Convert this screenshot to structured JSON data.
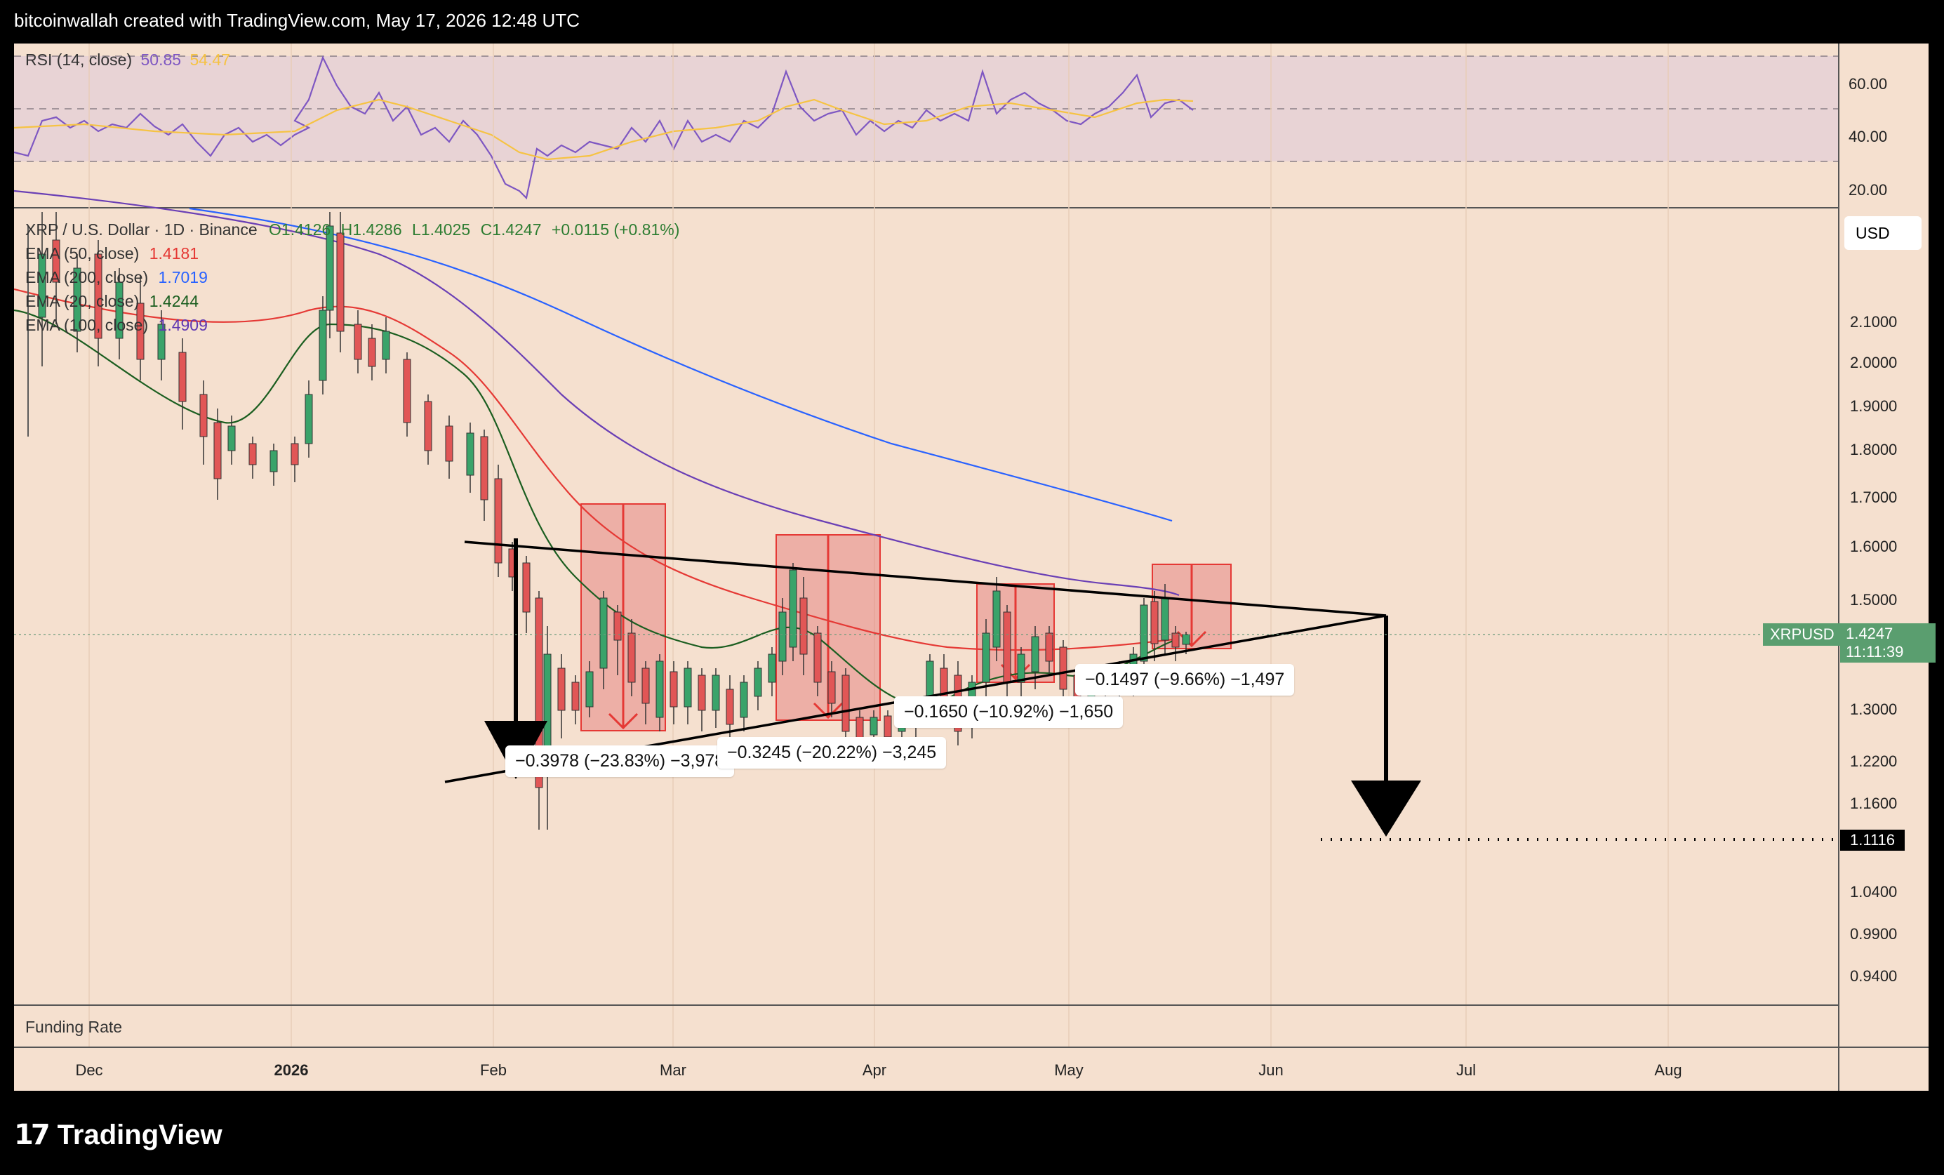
{
  "header": {
    "credit": "bitcoinwallah created with TradingView.com, May 17, 2026 12:48 UTC"
  },
  "footer": {
    "brand": "TradingView",
    "logo_mark": "17"
  },
  "rsi": {
    "label": "RSI (14, close)",
    "value": "50.85",
    "ma_value": "54.47",
    "value_color": "#7e57c2",
    "ma_color": "#f6c343",
    "ticks": [
      "60.00",
      "40.00",
      "20.00"
    ]
  },
  "price_pane": {
    "symbol_line": "XRP / U.S. Dollar · 1D · Binance",
    "ohlc": {
      "o": "O1.4126",
      "h": "H1.4286",
      "l": "L1.4025",
      "c": "C1.4247",
      "chg": "+0.0115 (+0.81%)"
    },
    "currency": "USD",
    "ema_legend": [
      {
        "label": "EMA (50, close)",
        "value": "1.4181",
        "color": "#e53935"
      },
      {
        "label": "EMA (200, close)",
        "value": "1.7019",
        "color": "#2962ff"
      },
      {
        "label": "EMA (20, close)",
        "value": "1.4244",
        "color": "#1b5e20"
      },
      {
        "label": "EMA (100, close)",
        "value": "1.4909",
        "color": "#5e35b1"
      }
    ],
    "price_ticks": [
      "2.1000",
      "2.0000",
      "1.9000",
      "1.8000",
      "1.7000",
      "1.6000",
      "1.5000",
      "1.3000",
      "1.2200",
      "1.1600",
      "1.0400",
      "0.9900",
      "0.9400"
    ],
    "last_price": {
      "symbol": "XRPUSD",
      "price": "1.4247",
      "countdown": "11:11:39",
      "color": "#5a9e6f"
    },
    "target_price": "1.1116",
    "measure_labels": [
      "−0.3978 (−23.83%) −3,978",
      "−0.3245 (−20.22%) −3,245",
      "−0.1650 (−10.92%) −1,650",
      "−0.1497 (−9.66%) −1,497"
    ]
  },
  "funding": {
    "label": "Funding Rate"
  },
  "time_axis": [
    "Dec",
    "2026",
    "Feb",
    "Mar",
    "Apr",
    "May",
    "Jun",
    "Jul",
    "Aug"
  ],
  "chart_data": [
    {
      "type": "line",
      "title": "RSI (14, close)",
      "ylim": [
        15,
        80
      ],
      "series": [
        {
          "name": "RSI (14, close)",
          "last": 50.85
        },
        {
          "name": "RSI MA",
          "last": 54.47
        }
      ],
      "bands": [
        70,
        50,
        30
      ]
    },
    {
      "type": "candlestick",
      "title": "XRP / U.S. Dollar · 1D · Binance",
      "x_range": [
        "2025-11-20",
        "2026-08-31"
      ],
      "ylog": true,
      "series": [
        {
          "name": "EMA (50, close)",
          "last": 1.4181
        },
        {
          "name": "EMA (200, close)",
          "last": 1.7019
        },
        {
          "name": "EMA (20, close)",
          "last": 1.4244
        },
        {
          "name": "EMA (100, close)",
          "last": 1.4909
        }
      ],
      "last_close": 1.4247,
      "target": 1.1116,
      "measurements": [
        {
          "start": "2026-02-01",
          "from": 1.669,
          "change": -0.3978,
          "pct": -23.83
        },
        {
          "start": "2026-02-15",
          "from": 1.605,
          "change": -0.3245,
          "pct": -20.22
        },
        {
          "start": "2026-03-18",
          "from": 1.511,
          "change": -0.165,
          "pct": -10.92
        },
        {
          "start": "2026-04-19",
          "from": 1.55,
          "change": -0.1497,
          "pct": -9.66
        }
      ]
    }
  ]
}
